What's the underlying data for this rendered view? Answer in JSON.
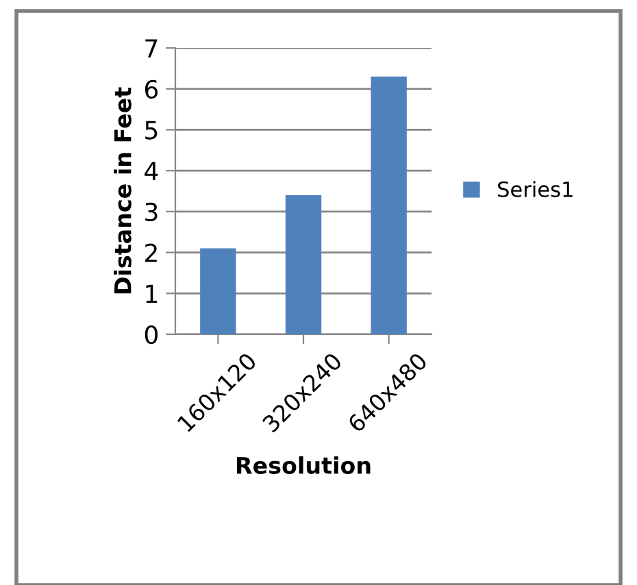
{
  "chart_data": {
    "type": "bar",
    "xlabel": "Resolution",
    "ylabel": "Distance in Feet",
    "categories": [
      "160x120",
      "320x240",
      "640x480"
    ],
    "series": [
      {
        "name": "Series1",
        "color": "#4f81bd",
        "values": [
          2.1,
          3.4,
          6.3
        ]
      }
    ],
    "ylim": [
      0,
      7
    ],
    "yticks": [
      0,
      1,
      2,
      3,
      4,
      5,
      6,
      7
    ],
    "grid": "y",
    "legend": "right"
  }
}
